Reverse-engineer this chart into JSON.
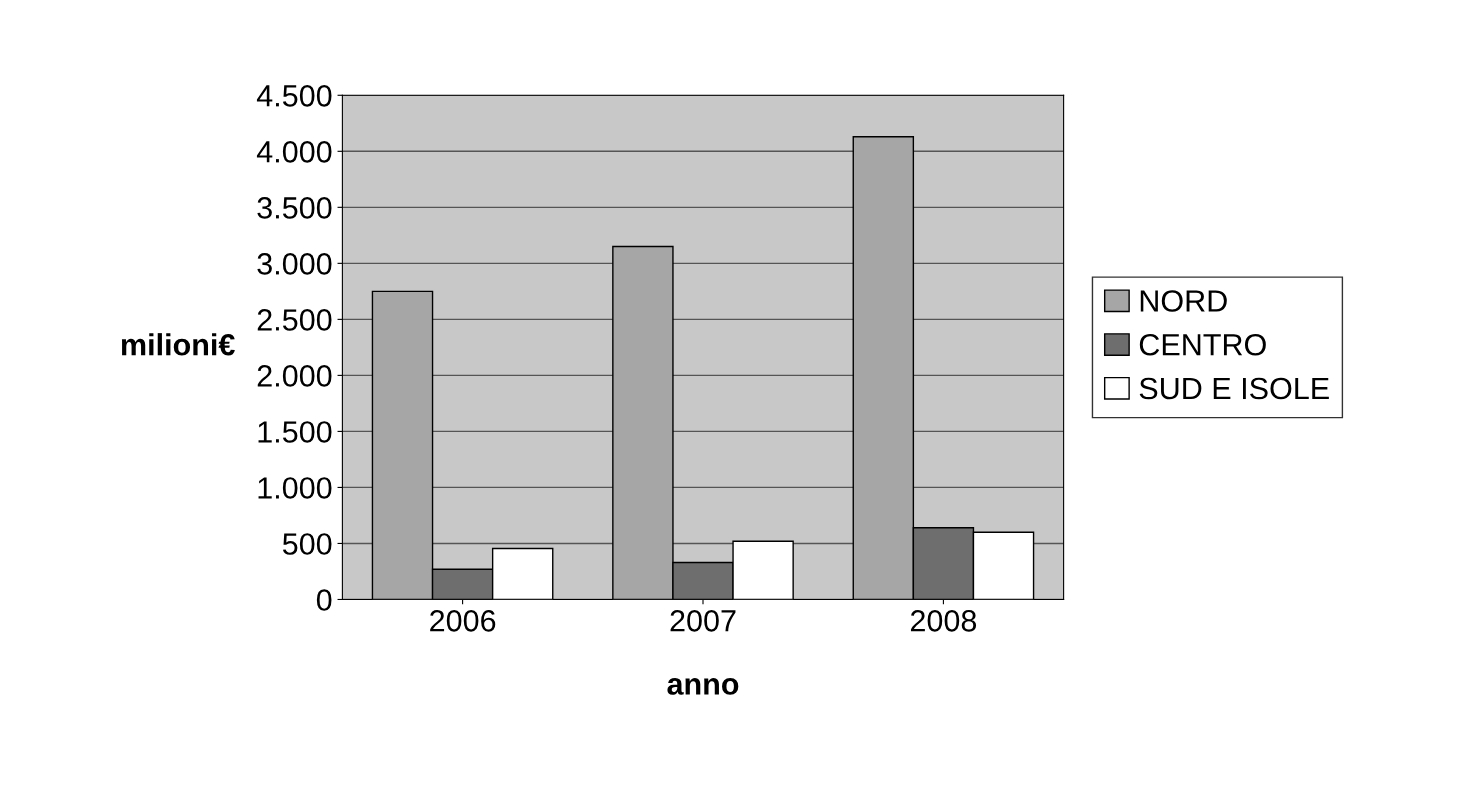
{
  "chart_data": {
    "type": "bar",
    "xlabel": "anno",
    "ylabel": "milioni€",
    "categories": [
      "2006",
      "2007",
      "2008"
    ],
    "series": [
      {
        "name": "NORD",
        "color": "#a6a6a6",
        "values": [
          2750,
          3150,
          4130
        ]
      },
      {
        "name": "CENTRO",
        "color": "#6e6e6e",
        "values": [
          270,
          330,
          640
        ]
      },
      {
        "name": "SUD E ISOLE",
        "color": "#ffffff",
        "values": [
          455,
          520,
          600
        ]
      }
    ],
    "ylim": [
      0,
      4500
    ],
    "yticks": [
      0,
      {
        "value": 500,
        "label": "500"
      },
      {
        "value": 1000,
        "label": "1.000"
      },
      {
        "value": 1500,
        "label": "1.500"
      },
      {
        "value": 2000,
        "label": "2.000"
      },
      {
        "value": 2500,
        "label": "2.500"
      },
      {
        "value": 3000,
        "label": "3.000"
      },
      {
        "value": 3500,
        "label": "3.500"
      },
      {
        "value": 4000,
        "label": "4.000"
      },
      {
        "value": 4500,
        "label": "4.500"
      }
    ],
    "grid": "y",
    "legend": "right"
  }
}
